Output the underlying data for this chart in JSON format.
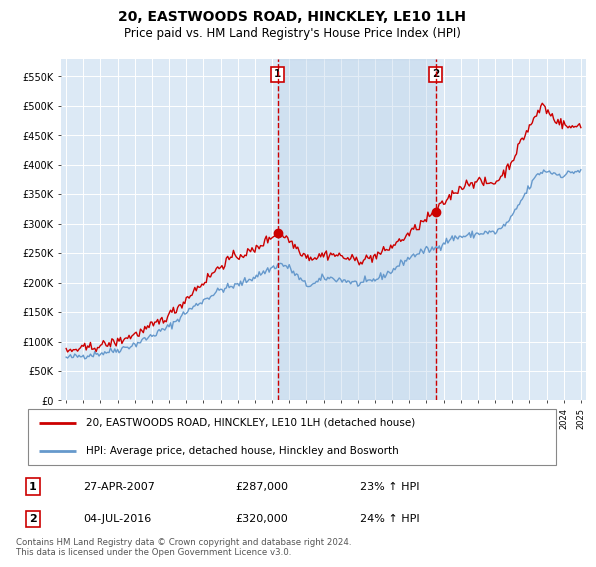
{
  "title": "20, EASTWOODS ROAD, HINCKLEY, LE10 1LH",
  "subtitle": "Price paid vs. HM Land Registry's House Price Index (HPI)",
  "title_fontsize": 10,
  "subtitle_fontsize": 8.5,
  "line1_color": "#cc0000",
  "line2_color": "#6699cc",
  "vline_color": "#cc0000",
  "shade_color": "#ccddf0",
  "background_color": "#ffffff",
  "plot_bg_color": "#dce9f5",
  "grid_color": "#ffffff",
  "ylim": [
    0,
    580000
  ],
  "yticks": [
    0,
    50000,
    100000,
    150000,
    200000,
    250000,
    300000,
    350000,
    400000,
    450000,
    500000,
    550000
  ],
  "transaction1_date": "27-APR-2007",
  "transaction1_price": 287000,
  "transaction1_pct": "23%",
  "transaction1_year": 2007.32,
  "transaction2_date": "04-JUL-2016",
  "transaction2_price": 320000,
  "transaction2_pct": "24%",
  "transaction2_year": 2016.54,
  "legend_line1": "20, EASTWOODS ROAD, HINCKLEY, LE10 1LH (detached house)",
  "legend_line2": "HPI: Average price, detached house, Hinckley and Bosworth",
  "footer": "Contains HM Land Registry data © Crown copyright and database right 2024.\nThis data is licensed under the Open Government Licence v3.0."
}
